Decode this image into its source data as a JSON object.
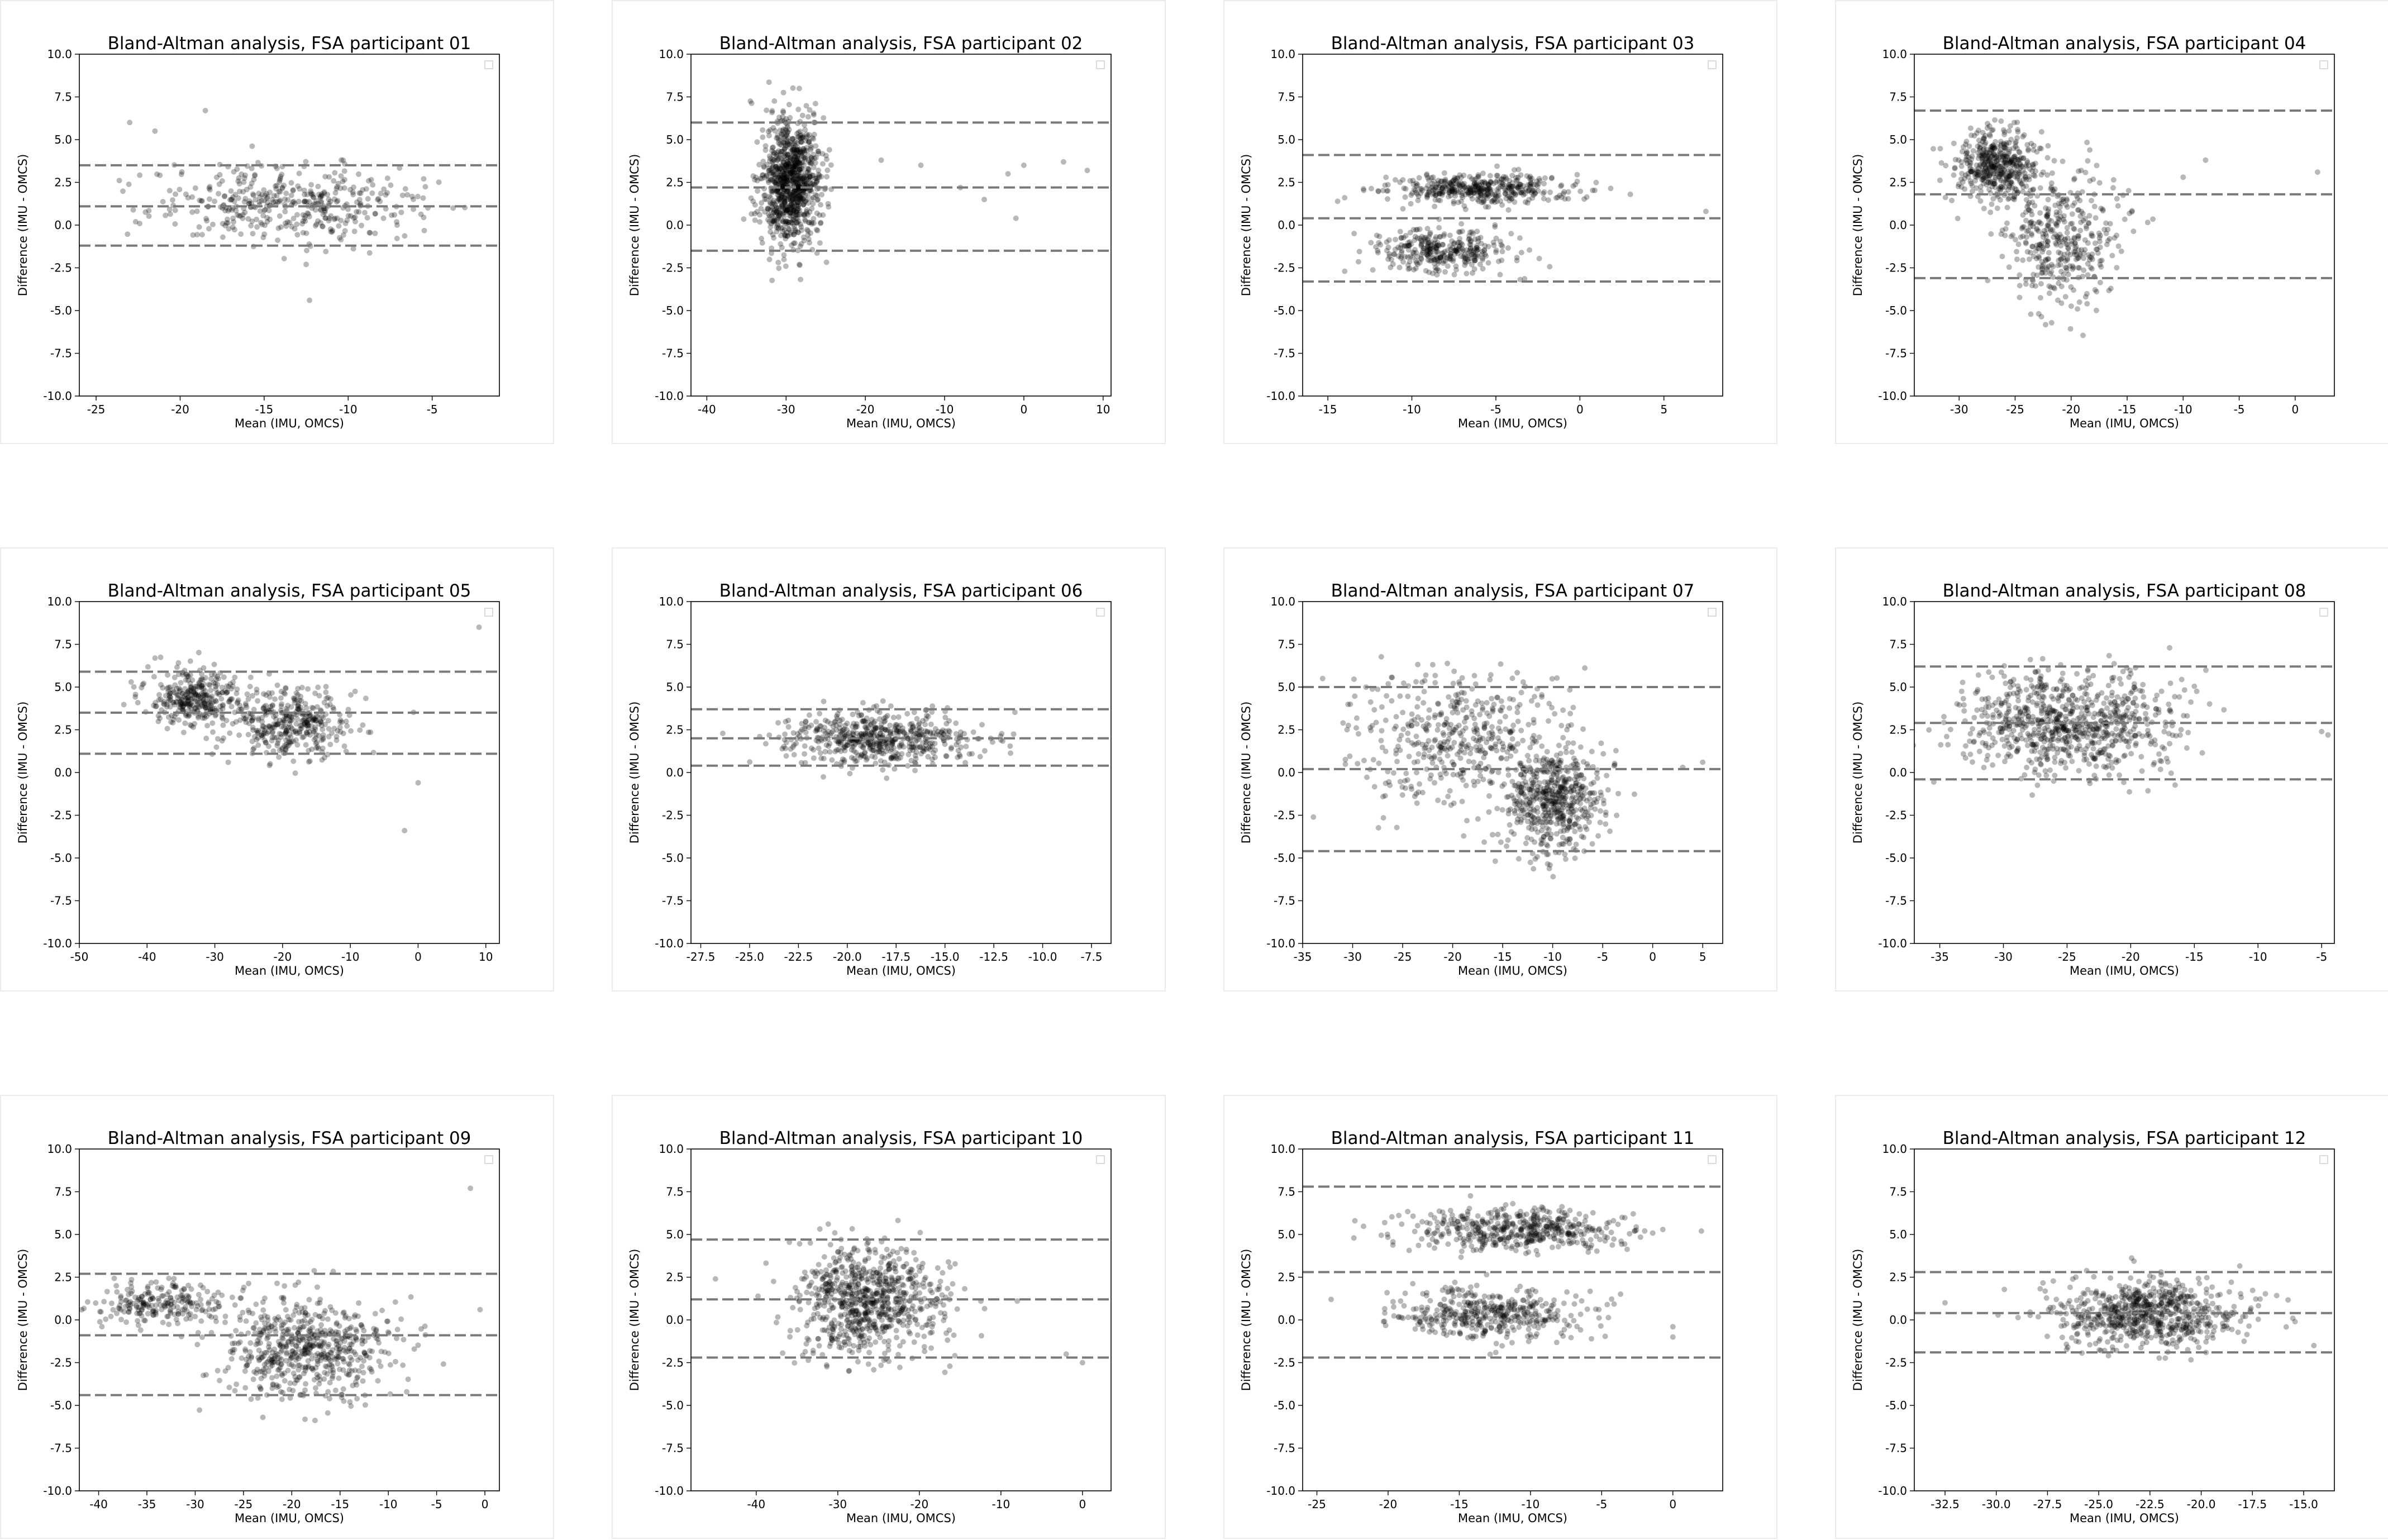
{
  "figure": {
    "layout": "3x4 grid of Bland-Altman scatter plots"
  },
  "chart_data": [
    {
      "type": "scatter",
      "title": "Bland-Altman analysis, FSA participant 01",
      "xlabel": "Mean (IMU, OMCS)",
      "ylabel": "Difference (IMU - OMCS)",
      "xlim": [
        -26,
        -1
      ],
      "ylim": [
        -10,
        10
      ],
      "xticks": [
        -25,
        -20,
        -15,
        -10,
        -5
      ],
      "xtick_labels": [
        "-25",
        "-20",
        "-15",
        "-10",
        "-5"
      ],
      "yticks": [
        -10,
        -7.5,
        -5,
        -2.5,
        0,
        2.5,
        5,
        7.5,
        10
      ],
      "ytick_labels": [
        "-10.0",
        "-7.5",
        "-5.0",
        "-2.5",
        "0.0",
        "2.5",
        "5.0",
        "7.5",
        "10.0"
      ],
      "bias": 1.1,
      "loa_upper": 3.5,
      "loa_lower": -1.2,
      "clusters": [
        {
          "cx": -13.5,
          "sx": 4.0,
          "cy": 1.3,
          "sy": 1.1,
          "n": 420
        }
      ],
      "outliers": [
        [
          -12.3,
          -4.4
        ],
        [
          -12.5,
          -2.3
        ],
        [
          -23.0,
          6.0
        ],
        [
          -21.5,
          5.5
        ],
        [
          -18.5,
          6.7
        ]
      ]
    },
    {
      "type": "scatter",
      "title": "Bland-Altman analysis, FSA participant 02",
      "xlabel": "Mean (IMU, OMCS)",
      "ylabel": "Difference (IMU - OMCS)",
      "xlim": [
        -42,
        11
      ],
      "ylim": [
        -10,
        10
      ],
      "xticks": [
        -40,
        -30,
        -20,
        -10,
        0,
        10
      ],
      "xtick_labels": [
        "-40",
        "-30",
        "-20",
        "-10",
        "0",
        "10"
      ],
      "yticks": [
        -10,
        -7.5,
        -5,
        -2.5,
        0,
        2.5,
        5,
        7.5,
        10
      ],
      "ytick_labels": [
        "-10.0",
        "-7.5",
        "-5.0",
        "-2.5",
        "0.0",
        "2.5",
        "5.0",
        "7.5",
        "10.0"
      ],
      "bias": 2.2,
      "loa_upper": 6.0,
      "loa_lower": -1.5,
      "clusters": [
        {
          "cx": -29.5,
          "sx": 1.8,
          "cy": 2.5,
          "sy": 1.8,
          "n": 950
        }
      ],
      "outliers": [
        [
          -13,
          3.5
        ],
        [
          -8,
          2.2
        ],
        [
          -5,
          1.5
        ],
        [
          -2,
          3.0
        ],
        [
          0,
          3.5
        ],
        [
          5,
          3.7
        ],
        [
          8,
          3.2
        ],
        [
          -1,
          0.4
        ],
        [
          -18,
          3.8
        ]
      ]
    },
    {
      "type": "scatter",
      "title": "Bland-Altman analysis, FSA participant 03",
      "xlabel": "Mean (IMU, OMCS)",
      "ylabel": "Difference (IMU - OMCS)",
      "xlim": [
        -16.5,
        8.5
      ],
      "ylim": [
        -10,
        10
      ],
      "xticks": [
        -15,
        -10,
        -5,
        0,
        5
      ],
      "xtick_labels": [
        "-15",
        "-10",
        "-5",
        "0",
        "5"
      ],
      "yticks": [
        -10,
        -7.5,
        -5,
        -2.5,
        0,
        2.5,
        5,
        7.5,
        10
      ],
      "ytick_labels": [
        "-10.0",
        "-7.5",
        "-5.0",
        "-2.5",
        "0.0",
        "2.5",
        "5.0",
        "7.5",
        "10.0"
      ],
      "bias": 0.4,
      "loa_upper": 4.1,
      "loa_lower": -3.3,
      "clusters": [
        {
          "cx": -6.0,
          "sx": 2.8,
          "cy": 2.1,
          "sy": 0.45,
          "n": 420
        },
        {
          "cx": -8.0,
          "sx": 2.0,
          "cy": -1.6,
          "sy": 0.65,
          "n": 330
        }
      ],
      "outliers": [
        [
          3,
          1.8
        ],
        [
          7.5,
          0.8
        ],
        [
          -14,
          1.6
        ],
        [
          -12,
          2.0
        ]
      ]
    },
    {
      "type": "scatter",
      "title": "Bland-Altman analysis, FSA participant 04",
      "xlabel": "Mean (IMU, OMCS)",
      "ylabel": "Difference (IMU - OMCS)",
      "xlim": [
        -34,
        3.5
      ],
      "ylim": [
        -10,
        10
      ],
      "xticks": [
        -30,
        -25,
        -20,
        -15,
        -10,
        -5,
        0
      ],
      "xtick_labels": [
        "-30",
        "-25",
        "-20",
        "-15",
        "-10",
        "-5",
        "0"
      ],
      "yticks": [
        -10,
        -7.5,
        -5,
        -2.5,
        0,
        2.5,
        5,
        7.5,
        10
      ],
      "ytick_labels": [
        "-10.0",
        "-7.5",
        "-5.0",
        "-2.5",
        "0.0",
        "2.5",
        "5.0",
        "7.5",
        "10.0"
      ],
      "bias": 1.8,
      "loa_upper": 6.7,
      "loa_lower": -3.1,
      "clusters": [
        {
          "cx": -26.5,
          "sx": 1.8,
          "cy": 3.6,
          "sy": 1.0,
          "n": 450
        },
        {
          "cx": -21.0,
          "sx": 2.5,
          "cy": -0.8,
          "sy": 2.0,
          "n": 400
        }
      ],
      "outliers": [
        [
          -8,
          3.8
        ],
        [
          2,
          3.1
        ],
        [
          -10,
          2.8
        ]
      ]
    },
    {
      "type": "scatter",
      "title": "Bland-Altman analysis, FSA participant 05",
      "xlabel": "Mean (IMU, OMCS)",
      "ylabel": "Difference (IMU - OMCS)",
      "xlim": [
        -50,
        12
      ],
      "ylim": [
        -10,
        10
      ],
      "xticks": [
        -50,
        -40,
        -30,
        -20,
        -10,
        0,
        10
      ],
      "xtick_labels": [
        "-50",
        "-40",
        "-30",
        "-20",
        "-10",
        "0",
        "10"
      ],
      "yticks": [
        -10,
        -7.5,
        -5,
        -2.5,
        0,
        2.5,
        5,
        7.5,
        10
      ],
      "ytick_labels": [
        "-10.0",
        "-7.5",
        "-5.0",
        "-2.5",
        "0.0",
        "2.5",
        "5.0",
        "7.5",
        "10.0"
      ],
      "bias": 3.5,
      "loa_upper": 5.9,
      "loa_lower": 1.1,
      "clusters": [
        {
          "cx": -33,
          "sx": 3.5,
          "cy": 4.3,
          "sy": 0.8,
          "n": 320
        },
        {
          "cx": -19,
          "sx": 4.5,
          "cy": 2.9,
          "sy": 1.0,
          "n": 380
        }
      ],
      "outliers": [
        [
          -2,
          -3.4
        ],
        [
          0,
          -0.6
        ],
        [
          9,
          8.5
        ]
      ]
    },
    {
      "type": "scatter",
      "title": "Bland-Altman analysis, FSA participant 06",
      "xlabel": "Mean (IMU, OMCS)",
      "ylabel": "Difference (IMU - OMCS)",
      "xlim": [
        -28,
        -6.5
      ],
      "ylim": [
        -10,
        10
      ],
      "xticks": [
        -27.5,
        -25,
        -22.5,
        -20,
        -17.5,
        -15,
        -12.5,
        -10,
        -7.5
      ],
      "xtick_labels": [
        "-27.5",
        "-25.0",
        "-22.5",
        "-20.0",
        "-17.5",
        "-15.0",
        "-12.5",
        "-10.0",
        "-7.5"
      ],
      "yticks": [
        -10,
        -7.5,
        -5,
        -2.5,
        0,
        2.5,
        5,
        7.5,
        10
      ],
      "ytick_labels": [
        "-10.0",
        "-7.5",
        "-5.0",
        "-2.5",
        "0.0",
        "2.5",
        "5.0",
        "7.5",
        "10.0"
      ],
      "bias": 2.0,
      "loa_upper": 3.7,
      "loa_lower": 0.4,
      "clusters": [
        {
          "cx": -18.5,
          "sx": 2.4,
          "cy": 2.0,
          "sy": 0.75,
          "n": 560
        }
      ],
      "outliers": []
    },
    {
      "type": "scatter",
      "title": "Bland-Altman analysis, FSA participant 07",
      "xlabel": "Mean (IMU, OMCS)",
      "ylabel": "Difference (IMU - OMCS)",
      "xlim": [
        -35,
        7
      ],
      "ylim": [
        -10,
        10
      ],
      "xticks": [
        -35,
        -30,
        -25,
        -20,
        -15,
        -10,
        -5,
        0,
        5
      ],
      "xtick_labels": [
        "-35",
        "-30",
        "-25",
        "-20",
        "-15",
        "-10",
        "-5",
        "0",
        "5"
      ],
      "yticks": [
        -10,
        -7.5,
        -5,
        -2.5,
        0,
        2.5,
        5,
        7.5,
        10
      ],
      "ytick_labels": [
        "-10.0",
        "-7.5",
        "-5.0",
        "-2.5",
        "0.0",
        "2.5",
        "5.0",
        "7.5",
        "10.0"
      ],
      "bias": 0.2,
      "loa_upper": 5.0,
      "loa_lower": -4.6,
      "clusters": [
        {
          "cx": -20,
          "sx": 5.5,
          "cy": 2.0,
          "sy": 2.0,
          "n": 450
        },
        {
          "cx": -10,
          "sx": 2.5,
          "cy": -1.5,
          "sy": 1.6,
          "n": 550
        }
      ],
      "outliers": [
        [
          3,
          0.3
        ],
        [
          5,
          0.6
        ],
        [
          -33,
          5.5
        ]
      ]
    },
    {
      "type": "scatter",
      "title": "Bland-Altman analysis, FSA participant 08",
      "xlabel": "Mean (IMU, OMCS)",
      "ylabel": "Difference (IMU - OMCS)",
      "xlim": [
        -37,
        -4
      ],
      "ylim": [
        -10,
        10
      ],
      "xticks": [
        -35,
        -30,
        -25,
        -20,
        -15,
        -10,
        -5
      ],
      "xtick_labels": [
        "-35",
        "-30",
        "-25",
        "-20",
        "-15",
        "-10",
        "-5"
      ],
      "yticks": [
        -10,
        -7.5,
        -5,
        -2.5,
        0,
        2.5,
        5,
        7.5,
        10
      ],
      "ytick_labels": [
        "-10.0",
        "-7.5",
        "-5.0",
        "-2.5",
        "0.0",
        "2.5",
        "5.0",
        "7.5",
        "10.0"
      ],
      "bias": 2.9,
      "loa_upper": 6.2,
      "loa_lower": -0.4,
      "clusters": [
        {
          "cx": -25,
          "sx": 4.2,
          "cy": 2.9,
          "sy": 1.5,
          "n": 800
        }
      ],
      "outliers": [
        [
          -5,
          2.4
        ],
        [
          -4.5,
          2.2
        ]
      ]
    },
    {
      "type": "scatter",
      "title": "Bland-Altman analysis, FSA participant 09",
      "xlabel": "Mean (IMU, OMCS)",
      "ylabel": "Difference (IMU - OMCS)",
      "xlim": [
        -42,
        1.5
      ],
      "ylim": [
        -10,
        10
      ],
      "xticks": [
        -40,
        -35,
        -30,
        -25,
        -20,
        -15,
        -10,
        -5,
        0
      ],
      "xtick_labels": [
        "-40",
        "-35",
        "-30",
        "-25",
        "-20",
        "-15",
        "-10",
        "-5",
        "0"
      ],
      "yticks": [
        -10,
        -7.5,
        -5,
        -2.5,
        0,
        2.5,
        5,
        7.5,
        10
      ],
      "ytick_labels": [
        "-10.0",
        "-7.5",
        "-5.0",
        "-2.5",
        "0.0",
        "2.5",
        "5.0",
        "7.5",
        "10.0"
      ],
      "bias": -0.9,
      "loa_upper": 2.7,
      "loa_lower": -4.4,
      "clusters": [
        {
          "cx": -33,
          "sx": 4.0,
          "cy": 0.9,
          "sy": 0.6,
          "n": 230
        },
        {
          "cx": -18,
          "sx": 4.5,
          "cy": -1.7,
          "sy": 1.5,
          "n": 600
        }
      ],
      "outliers": [
        [
          -1.5,
          7.7
        ],
        [
          -0.5,
          0.6
        ]
      ]
    },
    {
      "type": "scatter",
      "title": "Bland-Altman analysis, FSA participant 10",
      "xlabel": "Mean (IMU, OMCS)",
      "ylabel": "Difference (IMU - OMCS)",
      "xlim": [
        -48,
        3.5
      ],
      "ylim": [
        -10,
        10
      ],
      "xticks": [
        -40,
        -30,
        -20,
        -10,
        0
      ],
      "xtick_labels": [
        "-40",
        "-30",
        "-20",
        "-10",
        "0"
      ],
      "yticks": [
        -10,
        -7.5,
        -5,
        -2.5,
        0,
        2.5,
        5,
        7.5,
        10
      ],
      "ytick_labels": [
        "-10.0",
        "-7.5",
        "-5.0",
        "-2.5",
        "0.0",
        "2.5",
        "5.0",
        "7.5",
        "10.0"
      ],
      "bias": 1.2,
      "loa_upper": 4.7,
      "loa_lower": -2.2,
      "clusters": [
        {
          "cx": -26,
          "sx": 4.5,
          "cy": 1.2,
          "sy": 1.6,
          "n": 780
        }
      ],
      "outliers": [
        [
          -2,
          -2.0
        ],
        [
          0,
          -2.5
        ],
        [
          -8,
          1.1
        ],
        [
          -45,
          2.4
        ]
      ]
    },
    {
      "type": "scatter",
      "title": "Bland-Altman analysis, FSA participant 11",
      "xlabel": "Mean (IMU, OMCS)",
      "ylabel": "Difference (IMU - OMCS)",
      "xlim": [
        -26,
        3.5
      ],
      "ylim": [
        -10,
        10
      ],
      "xticks": [
        -25,
        -20,
        -15,
        -10,
        -5,
        0
      ],
      "xtick_labels": [
        "-25",
        "-20",
        "-15",
        "-10",
        "-5",
        "0"
      ],
      "yticks": [
        -10,
        -7.5,
        -5,
        -2.5,
        0,
        2.5,
        5,
        7.5,
        10
      ],
      "ytick_labels": [
        "-10.0",
        "-7.5",
        "-5.0",
        "-2.5",
        "0.0",
        "2.5",
        "5.0",
        "7.5",
        "10.0"
      ],
      "bias": 2.8,
      "loa_upper": 7.8,
      "loa_lower": -2.2,
      "clusters": [
        {
          "cx": -11,
          "sx": 3.7,
          "cy": 5.3,
          "sy": 0.6,
          "n": 480
        },
        {
          "cx": -13,
          "sx": 3.2,
          "cy": 0.3,
          "sy": 0.7,
          "n": 420
        }
      ],
      "outliers": [
        [
          0,
          -0.4
        ],
        [
          0,
          -1.0
        ],
        [
          2,
          5.2
        ],
        [
          -24,
          1.2
        ]
      ]
    },
    {
      "type": "scatter",
      "title": "Bland-Altman analysis, FSA participant 12",
      "xlabel": "Mean (IMU, OMCS)",
      "ylabel": "Difference (IMU - OMCS)",
      "xlim": [
        -34,
        -13.5
      ],
      "ylim": [
        -10,
        10
      ],
      "xticks": [
        -32.5,
        -30,
        -27.5,
        -25,
        -22.5,
        -20,
        -17.5,
        -15
      ],
      "xtick_labels": [
        "-32.5",
        "-30.0",
        "-27.5",
        "-25.0",
        "-22.5",
        "-20.0",
        "-17.5",
        "-15.0"
      ],
      "yticks": [
        -10,
        -7.5,
        -5,
        -2.5,
        0,
        2.5,
        5,
        7.5,
        10
      ],
      "ytick_labels": [
        "-10.0",
        "-7.5",
        "-5.0",
        "-2.5",
        "0.0",
        "2.5",
        "5.0",
        "7.5",
        "10.0"
      ],
      "bias": 0.4,
      "loa_upper": 2.8,
      "loa_lower": -1.9,
      "clusters": [
        {
          "cx": -22.5,
          "sx": 2.3,
          "cy": 0.4,
          "sy": 1.0,
          "n": 700
        }
      ],
      "outliers": [
        [
          -32.5,
          1.0
        ],
        [
          -14.5,
          -1.5
        ]
      ]
    }
  ]
}
